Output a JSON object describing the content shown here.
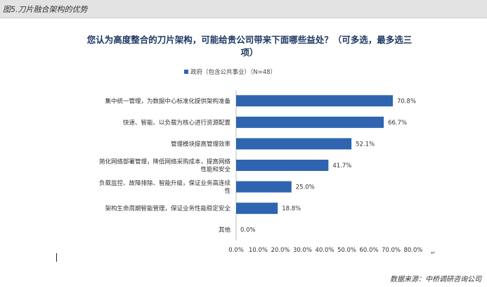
{
  "header": {
    "title": "图5.刀片融合架构的优势"
  },
  "footer": {
    "source": "数据来源：中桥调研咨询公司"
  },
  "chart_data": {
    "type": "bar",
    "orientation": "horizontal",
    "title": "您认为高度整合的刀片架构，可能给贵公司带来下面哪些益处？（可多选，最多选三项）",
    "series": [
      {
        "name": "政府（包含公共事业）（N=48）",
        "color": "#2e64b0",
        "values": [
          70.8,
          66.7,
          52.1,
          41.7,
          25.0,
          18.8,
          0.0
        ]
      }
    ],
    "categories": [
      "集中统一管理，为数据中心标准化提供架构准备",
      "快速、智能、以负载为核心进行资源配置",
      "管理模块提高管理效率",
      "简化网络部署管理，降低网络采购成本，提高网络性能和安全",
      "负载监控、故障排除、智能升级，保证业务高连续性",
      "架构生命周期智能管理，保证业务性能稳定安全",
      "其他"
    ],
    "value_labels": [
      "70.8%",
      "66.7%",
      "52.1%",
      "41.7%",
      "25.0%",
      "18.8%",
      "0.0%"
    ],
    "xlim": [
      0,
      80
    ],
    "x_ticks": [
      "0.0%",
      "10.0%",
      "20.0%",
      "30.0%",
      "40.0%",
      "50.0%",
      "60.0%",
      "70.0%",
      "80.0%"
    ],
    "grid": false,
    "legend": "top"
  }
}
